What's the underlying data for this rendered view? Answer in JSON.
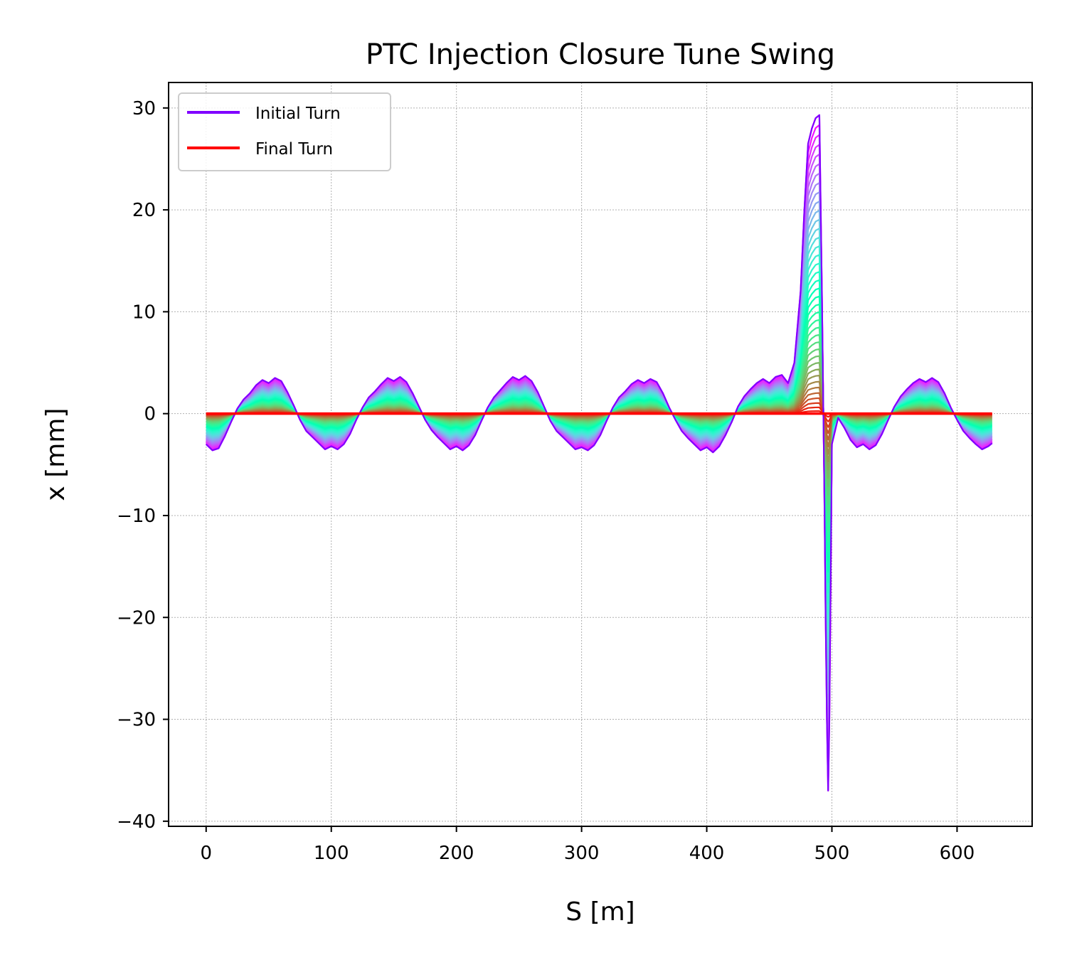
{
  "chart_data": {
    "type": "line",
    "title": "PTC Injection Closure Tune Swing",
    "xlabel": "S [m]",
    "ylabel": "x [mm]",
    "xlim": [
      -30,
      660
    ],
    "ylim": [
      -40.5,
      32.5
    ],
    "xticks": [
      0,
      100,
      200,
      300,
      400,
      500,
      600
    ],
    "yticks": [
      30,
      20,
      10,
      0,
      -10,
      -20,
      -30,
      -40
    ],
    "xtick_labels": [
      "0",
      "100",
      "200",
      "300",
      "400",
      "500",
      "600"
    ],
    "ytick_labels": [
      "30",
      "20",
      "10",
      "0",
      "−10",
      "−20",
      "−30",
      "−40"
    ],
    "grid": true,
    "legend_position": "top-left",
    "colormap": "rainbow",
    "turn_count": 40,
    "series": [
      {
        "name": "Initial Turn",
        "color": "#8000ff",
        "x": [
          0,
          5,
          10,
          15,
          20,
          25,
          30,
          35,
          40,
          45,
          50,
          55,
          60,
          65,
          70,
          75,
          80,
          85,
          90,
          95,
          100,
          105,
          110,
          115,
          120,
          125,
          130,
          135,
          140,
          145,
          150,
          155,
          160,
          165,
          170,
          175,
          180,
          185,
          190,
          195,
          200,
          205,
          210,
          215,
          220,
          225,
          230,
          235,
          240,
          245,
          250,
          255,
          260,
          265,
          270,
          275,
          280,
          285,
          290,
          295,
          300,
          305,
          310,
          315,
          320,
          325,
          330,
          335,
          340,
          345,
          350,
          355,
          360,
          365,
          370,
          375,
          380,
          385,
          390,
          395,
          400,
          405,
          410,
          415,
          420,
          425,
          430,
          435,
          440,
          445,
          450,
          455,
          460,
          465,
          470,
          475,
          478,
          481,
          484,
          487,
          490,
          492,
          494,
          495,
          496,
          497,
          498,
          500,
          505,
          510,
          515,
          520,
          525,
          530,
          535,
          540,
          545,
          550,
          555,
          560,
          565,
          570,
          575,
          580,
          585,
          590,
          595,
          600,
          605,
          610,
          615,
          620,
          625,
          628
        ],
        "y": [
          -3.0,
          -3.6,
          -3.4,
          -2.2,
          -0.8,
          0.5,
          1.4,
          2.0,
          2.8,
          3.3,
          3.0,
          3.5,
          3.2,
          2.1,
          0.8,
          -0.6,
          -1.7,
          -2.3,
          -2.9,
          -3.5,
          -3.2,
          -3.5,
          -3.0,
          -2.0,
          -0.6,
          0.6,
          1.6,
          2.2,
          2.9,
          3.5,
          3.2,
          3.6,
          3.1,
          2.0,
          0.7,
          -0.6,
          -1.6,
          -2.3,
          -2.9,
          -3.5,
          -3.2,
          -3.6,
          -3.1,
          -2.1,
          -0.7,
          0.6,
          1.6,
          2.3,
          3.0,
          3.6,
          3.3,
          3.7,
          3.2,
          2.1,
          0.7,
          -0.7,
          -1.7,
          -2.3,
          -2.9,
          -3.5,
          -3.3,
          -3.6,
          -3.1,
          -2.1,
          -0.7,
          0.6,
          1.6,
          2.2,
          2.9,
          3.3,
          3.0,
          3.4,
          3.1,
          2.0,
          0.6,
          -0.6,
          -1.7,
          -2.4,
          -3.0,
          -3.6,
          -3.3,
          -3.8,
          -3.2,
          -2.1,
          -0.8,
          0.7,
          1.7,
          2.4,
          3.0,
          3.4,
          3.0,
          3.6,
          3.8,
          3.0,
          5.0,
          12.0,
          20.0,
          26.5,
          28.0,
          29.0,
          29.3,
          12.0,
          -8.0,
          -20.0,
          -30.0,
          -37.0,
          -30.0,
          -3.0,
          -0.4,
          -1.4,
          -2.6,
          -3.3,
          -3.0,
          -3.5,
          -3.1,
          -2.0,
          -0.6,
          0.7,
          1.7,
          2.4,
          3.0,
          3.4,
          3.1,
          3.5,
          3.1,
          2.0,
          0.6,
          -0.6,
          -1.7,
          -2.4,
          -3.0,
          -3.5,
          -3.2,
          -2.9
        ]
      },
      {
        "name": "Final Turn",
        "color": "#ff0000",
        "x": [
          0,
          100,
          200,
          300,
          400,
          480,
          485,
          490,
          495,
          500,
          520,
          600,
          628
        ],
        "y": [
          0,
          0,
          0,
          0,
          0,
          0,
          0,
          0,
          0,
          0,
          0,
          0,
          0
        ]
      }
    ]
  }
}
